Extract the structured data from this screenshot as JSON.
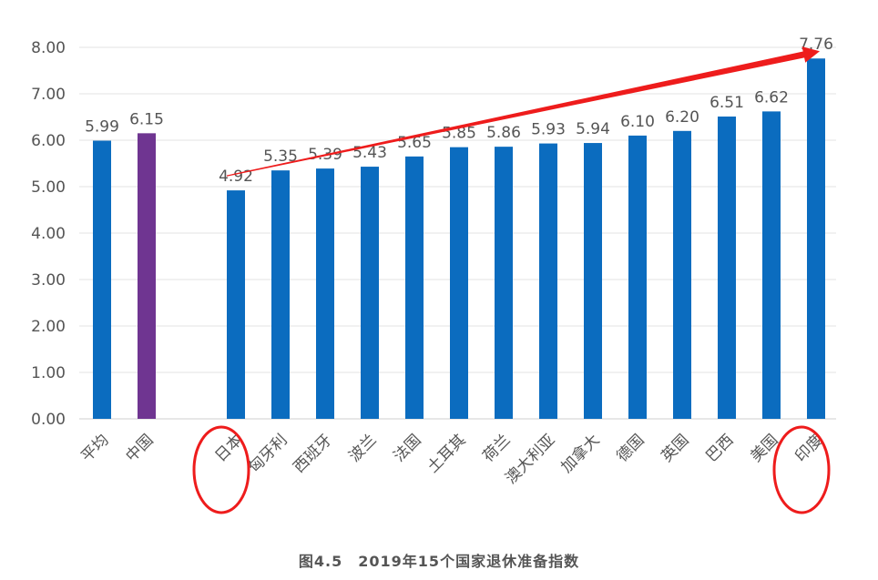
{
  "chart_data": {
    "type": "bar",
    "title": "",
    "xlabel": "",
    "ylabel": "",
    "ylim": [
      0,
      8
    ],
    "yticks": [
      "0.00",
      "1.00",
      "2.00",
      "3.00",
      "4.00",
      "5.00",
      "6.00",
      "7.00",
      "8.00"
    ],
    "grid": true,
    "legend": "none",
    "categories": [
      "平均",
      "中国",
      "日本",
      "匈牙利",
      "西班牙",
      "波兰",
      "法国",
      "土耳其",
      "荷兰",
      "澳大利亚",
      "加拿大",
      "德国",
      "英国",
      "巴西",
      "美国",
      "印度"
    ],
    "values": [
      5.99,
      6.15,
      4.92,
      5.35,
      5.39,
      5.43,
      5.65,
      5.85,
      5.86,
      5.93,
      5.94,
      6.1,
      6.2,
      6.51,
      6.62,
      7.76
    ],
    "value_labels": [
      "5.99",
      "6.15",
      "4.92",
      "5.35",
      "5.39",
      "5.43",
      "5.65",
      "5.85",
      "5.86",
      "5.93",
      "5.94",
      "6.10",
      "6.20",
      "6.51",
      "6.62",
      "7.76"
    ],
    "highlight": {
      "中国": "#6f3591"
    },
    "bar_color": "#0b6cbf",
    "annotations": {
      "trend_arrow": {
        "from": "日本",
        "to": "印度",
        "color": "#ee1c1c"
      },
      "circled_categories": [
        "日本",
        "印度"
      ],
      "circle_color": "#ee1c1c"
    }
  },
  "caption": "图4.5　2019年15个国家退休准备指数"
}
